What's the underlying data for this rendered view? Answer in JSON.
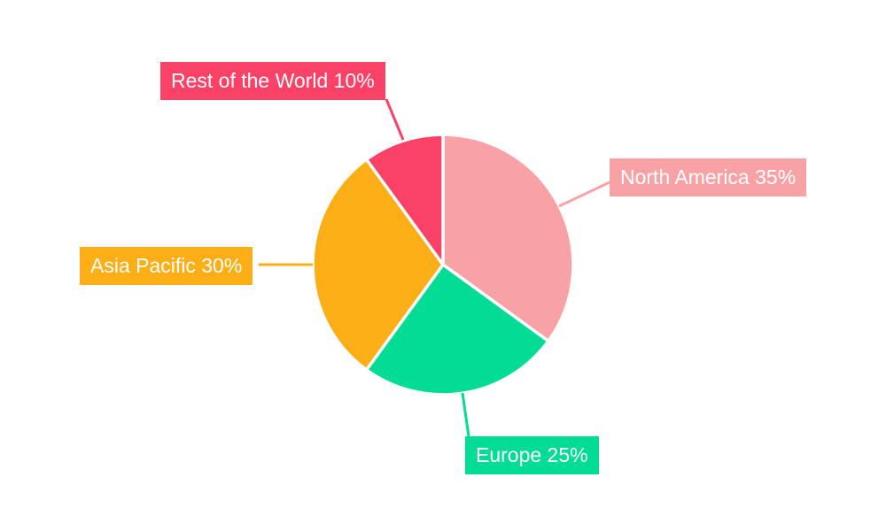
{
  "chart_data": {
    "type": "pie",
    "title": "",
    "background": "#FFFFFF",
    "legend": "none",
    "direction": "clockwise",
    "start_angle_deg": 0,
    "unit": "%",
    "categories": [
      "North America",
      "Europe",
      "Asia Pacific",
      "Rest of the World"
    ],
    "values": [
      35,
      25,
      30,
      10
    ],
    "slices": [
      {
        "name": "North America",
        "value": 35,
        "percent": "35%",
        "label": "North America 35%",
        "color": "#F8A2A6"
      },
      {
        "name": "Europe",
        "value": 25,
        "percent": "25%",
        "label": "Europe 25%",
        "color": "#02DC94"
      },
      {
        "name": "Asia Pacific",
        "value": 30,
        "percent": "30%",
        "label": "Asia Pacific 30%",
        "color": "#FCAE17"
      },
      {
        "name": "Rest of the World",
        "value": 10,
        "percent": "10%",
        "label": "Rest of the World 10%",
        "color": "#FB4266"
      }
    ],
    "slice_border_color": "#FFFFFF",
    "label_text_color": "#FFFFFF",
    "labels_style": "outside colored boxes with leader lines"
  }
}
